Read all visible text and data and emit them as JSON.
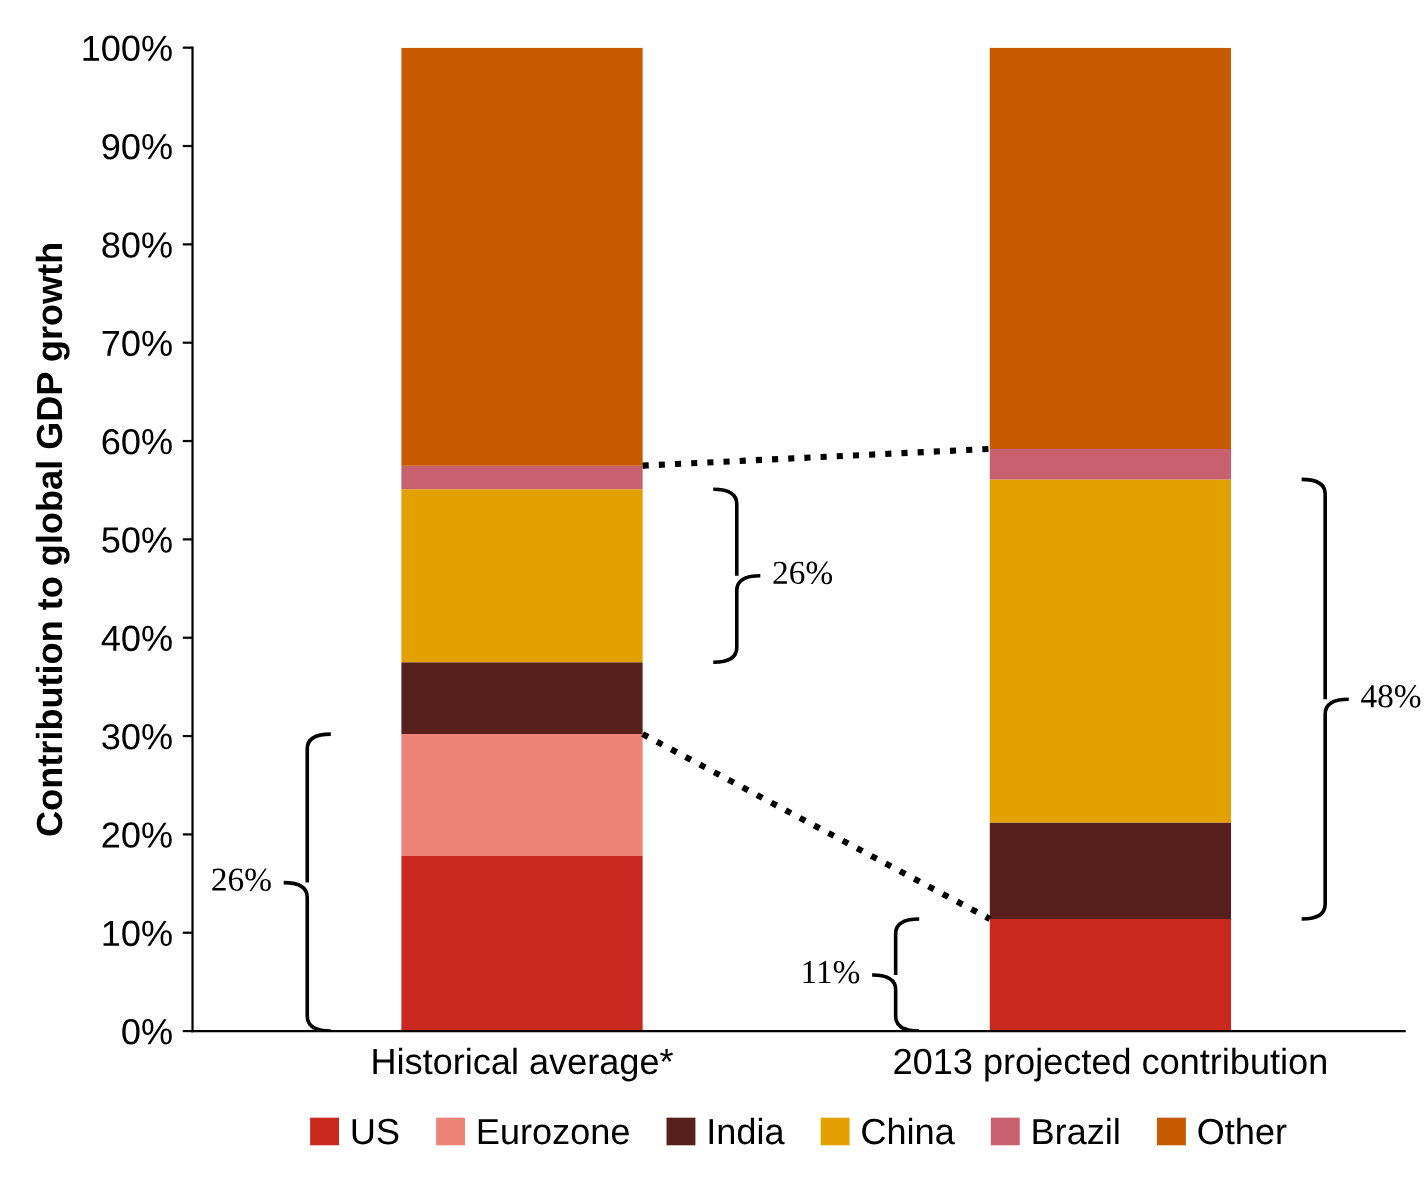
{
  "chart_data": {
    "type": "bar",
    "stacked": true,
    "ylabel": "Contribution to global GDP growth",
    "categories": [
      "Historical average*",
      "2013 projected contribution"
    ],
    "series": [
      {
        "name": "US",
        "color": "#c8281e",
        "values": [
          17.8,
          11.4
        ]
      },
      {
        "name": "Eurozone",
        "color": "#ee8378",
        "values": [
          12.4,
          0
        ]
      },
      {
        "name": "India",
        "color": "#58201c",
        "values": [
          7.3,
          9.8
        ]
      },
      {
        "name": "China",
        "color": "#e3a100",
        "values": [
          17.6,
          34.9
        ]
      },
      {
        "name": "Brazil",
        "color": "#c8606f",
        "values": [
          2.4,
          3.1
        ]
      },
      {
        "name": "Other",
        "color": "#c55a00",
        "values": [
          42.5,
          40.8
        ]
      }
    ],
    "ylim": [
      0,
      100
    ],
    "yticks": [
      {
        "value": 0,
        "label": "0%"
      },
      {
        "value": 10,
        "label": "10%"
      },
      {
        "value": 20,
        "label": "20%"
      },
      {
        "value": 30,
        "label": "30%"
      },
      {
        "value": 40,
        "label": "40%"
      },
      {
        "value": 50,
        "label": "50%"
      },
      {
        "value": 60,
        "label": "60%"
      },
      {
        "value": 70,
        "label": "70%"
      },
      {
        "value": 80,
        "label": "80%"
      },
      {
        "value": 90,
        "label": "90%"
      },
      {
        "value": 100,
        "label": "100%"
      }
    ],
    "annotations": [
      "26%",
      "26%",
      "11%",
      "48%"
    ],
    "grid": false,
    "legend": "bottom"
  }
}
